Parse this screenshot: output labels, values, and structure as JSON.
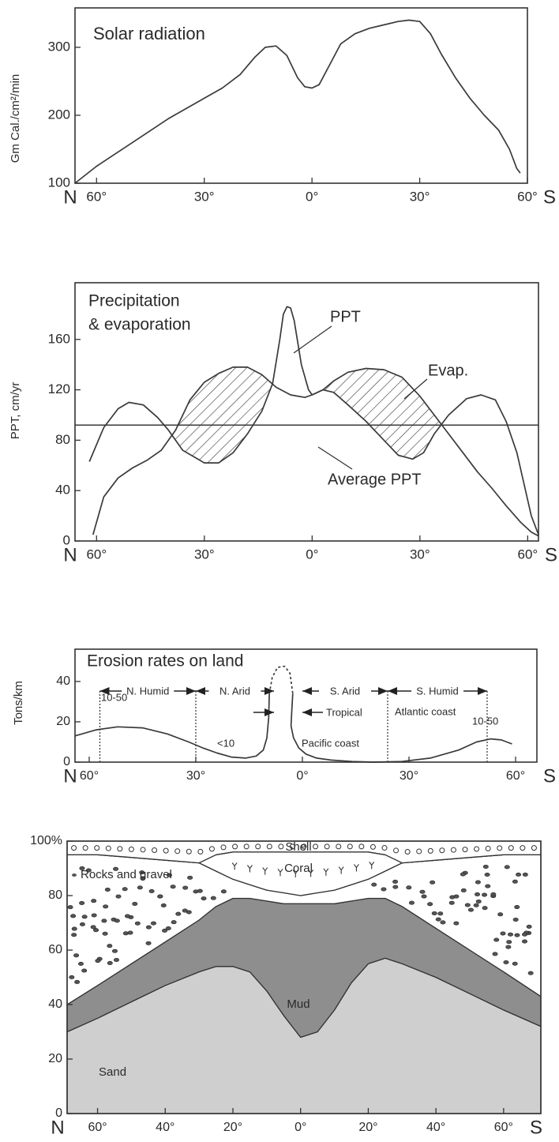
{
  "chart_data": [
    {
      "type": "line",
      "title": "Solar radiation",
      "y_label": "Gm Cal./cm²/min",
      "x_start_label": "N",
      "x_end_label": "S",
      "xlim": [
        -66,
        60
      ],
      "ylim": [
        100,
        358
      ],
      "xticks": [
        {
          "value": -60,
          "label": "60°"
        },
        {
          "value": -30,
          "label": "30°"
        },
        {
          "value": 0,
          "label": "0°"
        },
        {
          "value": 30,
          "label": "30°"
        },
        {
          "value": 60,
          "label": "60°"
        }
      ],
      "yticks": [
        100,
        200,
        300
      ],
      "series": [
        {
          "color": "#3a3a3a",
          "x": [
            -66,
            -60,
            -50,
            -40,
            -30,
            -25,
            -20,
            -16,
            -13,
            -10,
            -7,
            -4,
            -2,
            0,
            2,
            5,
            8,
            12,
            16,
            20,
            24,
            27,
            30,
            33,
            36,
            40,
            44,
            48,
            52,
            55,
            57,
            58
          ],
          "values": [
            100,
            125,
            160,
            195,
            225,
            240,
            260,
            285,
            300,
            302,
            288,
            255,
            242,
            240,
            245,
            275,
            305,
            320,
            328,
            333,
            338,
            340,
            338,
            320,
            290,
            255,
            225,
            200,
            178,
            150,
            122,
            115
          ]
        }
      ]
    },
    {
      "type": "line",
      "title": [
        "Precipitation",
        "& evaporation"
      ],
      "y_label": "PPT, cm/yr",
      "x_start_label": "N",
      "x_end_label": "S",
      "xlim": [
        -66,
        63
      ],
      "ylim": [
        0,
        205
      ],
      "xticks": [
        {
          "value": -60,
          "label": "60°"
        },
        {
          "value": -30,
          "label": "30°"
        },
        {
          "value": 0,
          "label": "0°"
        },
        {
          "value": 30,
          "label": "30°"
        },
        {
          "value": 60,
          "label": "60°"
        }
      ],
      "yticks": [
        0,
        40,
        80,
        120,
        160
      ],
      "hatch_between": true,
      "reference_line": {
        "label": "Average PPT",
        "value": 92
      },
      "series": [
        {
          "name": "PPT",
          "color": "#3a3a3a",
          "x": [
            -62,
            -58,
            -54,
            -51,
            -47,
            -43,
            -40,
            -36,
            -30,
            -26,
            -22,
            -18,
            -14,
            -11,
            -9,
            -8,
            -7,
            -6,
            -5,
            -3,
            -1,
            0,
            3,
            6,
            10,
            15,
            20,
            24,
            28,
            31,
            34,
            38,
            43,
            47,
            51,
            54,
            57,
            59,
            61,
            63
          ],
          "values": [
            63,
            90,
            105,
            110,
            108,
            98,
            88,
            72,
            62,
            62,
            70,
            85,
            103,
            125,
            160,
            180,
            186,
            185,
            175,
            140,
            120,
            116,
            120,
            118,
            108,
            95,
            80,
            68,
            65,
            70,
            85,
            100,
            113,
            116,
            112,
            95,
            70,
            45,
            20,
            5
          ]
        },
        {
          "name": "Evap.",
          "color": "#3a3a3a",
          "x": [
            -61,
            -58,
            -54,
            -50,
            -46,
            -42,
            -38,
            -34,
            -30,
            -26,
            -22,
            -18,
            -14,
            -10,
            -6,
            -2,
            0,
            3,
            6,
            10,
            15,
            20,
            25,
            30,
            34,
            38,
            42,
            46,
            50,
            54,
            58,
            61,
            63
          ],
          "values": [
            5,
            35,
            50,
            58,
            64,
            72,
            88,
            112,
            126,
            133,
            138,
            138,
            132,
            122,
            116,
            114,
            116,
            120,
            127,
            134,
            137,
            136,
            130,
            115,
            100,
            85,
            70,
            55,
            42,
            28,
            15,
            7,
            4
          ]
        }
      ]
    },
    {
      "type": "line",
      "title": "Erosion rates on land",
      "y_label": "Tons/km",
      "x_start_label": "N",
      "x_end_label": "S",
      "xlim": [
        -64,
        66
      ],
      "ylim": [
        0,
        56
      ],
      "xticks": [
        {
          "value": -60,
          "label": "60°"
        },
        {
          "value": -30,
          "label": "30°"
        },
        {
          "value": 0,
          "label": "0°"
        },
        {
          "value": 30,
          "label": "30°"
        },
        {
          "value": 60,
          "label": "60°"
        }
      ],
      "yticks": [
        0,
        20,
        40
      ],
      "zones": [
        {
          "label": "N. Humid",
          "from": -57,
          "to": -30
        },
        {
          "label": "N. Arid",
          "from": -30,
          "to": -8
        },
        {
          "label": "S. Arid",
          "from": 0,
          "to": 24
        },
        {
          "label": "S. Humid",
          "from": 24,
          "to": 52
        }
      ],
      "inward_zone": {
        "label": "Tropical",
        "from": -8,
        "to": 0
      },
      "dotted_lines": [
        -57,
        -30,
        24,
        52
      ],
      "annotations": [
        "10-50",
        "<10",
        "Pacific coast",
        "Atlantic coast",
        "10-50"
      ],
      "series": [
        {
          "color": "#3a3a3a",
          "x": [
            -64,
            -58,
            -52,
            -45,
            -38,
            -32,
            -28,
            -24,
            -20,
            -16,
            -13,
            -11,
            -10,
            -9.5,
            -9.3,
            -6,
            -2.7,
            -3,
            -3.2,
            -2.5,
            -1,
            1,
            4,
            8,
            14,
            20,
            28,
            36,
            44,
            49,
            53,
            56,
            59
          ],
          "values": [
            13,
            16,
            17.5,
            17,
            14,
            10,
            7,
            4.5,
            2.5,
            2,
            3,
            6,
            12,
            22,
            34,
            null,
            34,
            25,
            18,
            12,
            7,
            4,
            2,
            1,
            0.3,
            0,
            0.3,
            2,
            6,
            10,
            11.5,
            11,
            9
          ]
        },
        {
          "color": "#3a3a3a",
          "dashed": true,
          "x": [
            -9.3,
            -8.5,
            -7,
            -5,
            -3.5,
            -2.7
          ],
          "values": [
            34,
            42,
            47,
            47.5,
            44,
            34
          ]
        }
      ]
    },
    {
      "type": "area",
      "x_start_label": "N",
      "x_end_label": "S",
      "xlim": [
        -69,
        71
      ],
      "ylim": [
        0,
        100
      ],
      "xticks": [
        {
          "value": -60,
          "label": "60°"
        },
        {
          "value": -40,
          "label": "40°"
        },
        {
          "value": -20,
          "label": "20°"
        },
        {
          "value": 0,
          "label": "0°"
        },
        {
          "value": 20,
          "label": "20°"
        },
        {
          "value": 40,
          "label": "40°"
        },
        {
          "value": 60,
          "label": "60°"
        }
      ],
      "yticks": [
        0,
        20,
        40,
        60,
        80,
        {
          "value": 100,
          "label": "100%"
        }
      ],
      "x": [
        -69,
        -60,
        -50,
        -40,
        -30,
        -25,
        -20,
        -15,
        -10,
        -5,
        0,
        5,
        10,
        15,
        20,
        25,
        30,
        40,
        50,
        60,
        71
      ],
      "series": [
        {
          "name": "Sand",
          "color": "#cfcfcf",
          "values": [
            30,
            35,
            41,
            47,
            52,
            54,
            54,
            52,
            45,
            36,
            28,
            30,
            38,
            48,
            55,
            57,
            55,
            50,
            44,
            38,
            32
          ]
        },
        {
          "name": "Mud",
          "color": "#8e8e8e",
          "values": [
            10,
            12,
            14,
            16,
            19,
            22,
            25,
            27,
            33,
            41,
            49,
            47,
            39,
            30,
            24,
            22,
            21,
            18,
            16,
            14,
            11
          ]
        },
        {
          "name": "Rocks and gravel",
          "color": "#ffffff",
          "values": [
            55,
            48,
            39,
            30,
            21,
            13,
            7,
            5,
            4,
            4,
            3,
            4,
            5,
            6,
            7,
            10,
            16,
            25,
            34,
            43,
            52
          ]
        },
        {
          "name": "Coral",
          "color": "#ffffff",
          "values": [
            0,
            0,
            0,
            0,
            0,
            6,
            10,
            12,
            14,
            15,
            16,
            15,
            14,
            12,
            10,
            6,
            0,
            0,
            0,
            0,
            0
          ]
        },
        {
          "name": "Shell",
          "color": "#ffffff",
          "values": [
            5,
            5,
            6,
            7,
            8,
            5,
            4,
            4,
            4,
            4,
            4,
            4,
            4,
            4,
            4,
            5,
            8,
            7,
            6,
            5,
            5
          ]
        }
      ]
    }
  ]
}
